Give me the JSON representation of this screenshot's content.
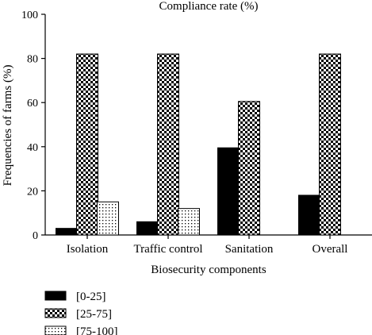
{
  "chart_data": {
    "type": "bar",
    "title": "Compliance rate (%)",
    "xlabel": "Biosecurity components",
    "ylabel": "Frequencies of farms (%)",
    "categories": [
      "Isolation",
      "Traffic control",
      "Sanitation",
      "Overall"
    ],
    "ylim": [
      0,
      100
    ],
    "yticks": [
      0,
      20,
      40,
      60,
      80,
      100
    ],
    "series": [
      {
        "name": "[0-25]",
        "pattern": "solid",
        "color": "#000000",
        "values": [
          3,
          6,
          39.5,
          18
        ]
      },
      {
        "name": "[25-75]",
        "pattern": "checker",
        "color": "#000000",
        "values": [
          82,
          82,
          60.5,
          82
        ]
      },
      {
        "name": "[75-100]",
        "pattern": "dots",
        "color": "#000000",
        "values": [
          15,
          12,
          0,
          0
        ]
      }
    ],
    "legend_position": "bottom-left",
    "grid": false
  }
}
